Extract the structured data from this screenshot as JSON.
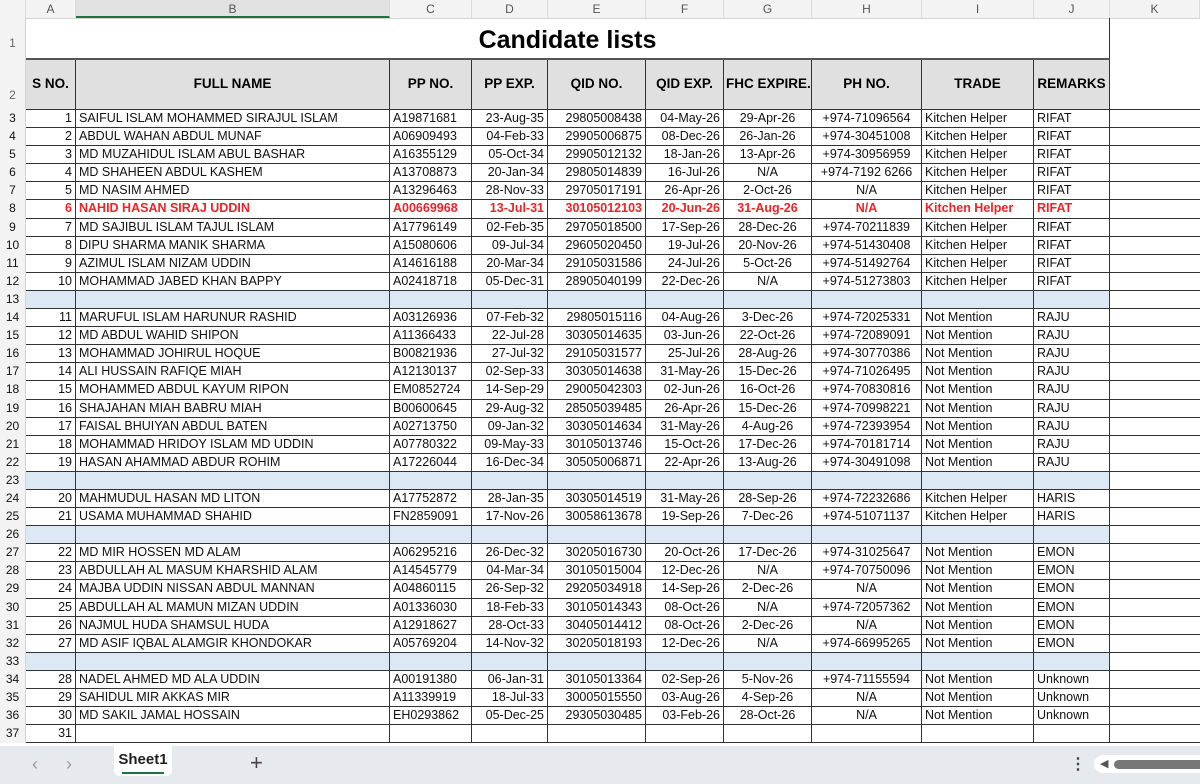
{
  "columns": [
    "A",
    "B",
    "C",
    "D",
    "E",
    "F",
    "G",
    "H",
    "I",
    "J",
    "K"
  ],
  "title": "Candidate lists",
  "headers": [
    "S NO.",
    "FULL NAME",
    "PP NO.",
    "PP EXP.",
    "QID NO.",
    "QID EXP.",
    "FHC EXPIRE.",
    "PH NO.",
    "TRADE",
    "REMARKS"
  ],
  "highlight_color": "#e8262a",
  "separator_color": "#dde8f5",
  "rows": [
    {
      "n": 3,
      "cells": [
        "1",
        "SAIFUL ISLAM MOHAMMED SIRAJUL ISLAM",
        "A19871681",
        "23-Aug-35",
        "29805008438",
        "04-May-26",
        "29-Apr-26",
        "+974-71096564",
        "Kitchen Helper",
        "RIFAT"
      ]
    },
    {
      "n": 4,
      "cells": [
        "2",
        "ABDUL WAHAN ABDUL MUNAF",
        "A06909493",
        "04-Feb-33",
        "29905006875",
        "08-Dec-26",
        "26-Jan-26",
        "+974-30451008",
        "Kitchen Helper",
        "RIFAT"
      ]
    },
    {
      "n": 5,
      "cells": [
        "3",
        "MD MUZAHIDUL ISLAM ABUL BASHAR",
        "A16355129",
        "05-Oct-34",
        "29905012132",
        "18-Jan-26",
        "13-Apr-26",
        "+974-30956959",
        "Kitchen Helper",
        "RIFAT"
      ]
    },
    {
      "n": 6,
      "cells": [
        "4",
        "MD SHAHEEN ABDUL KASHEM",
        "A13708873",
        "20-Jan-34",
        "29805014839",
        "16-Jul-26",
        "N/A",
        "+974-7192 6266",
        "Kitchen Helper",
        "RIFAT"
      ]
    },
    {
      "n": 7,
      "cells": [
        "5",
        "MD NASIM AHMED",
        "A13296463",
        "28-Nov-33",
        "29705017191",
        "26-Apr-26",
        "2-Oct-26",
        "N/A",
        "Kitchen Helper",
        "RIFAT"
      ]
    },
    {
      "n": 8,
      "highlight": true,
      "cells": [
        "6",
        "NAHID HASAN SIRAJ UDDIN",
        "A00669968",
        "13-Jul-31",
        "30105012103",
        "20-Jun-26",
        "31-Aug-26",
        "N/A",
        "Kitchen Helper",
        "RIFAT"
      ]
    },
    {
      "n": 9,
      "cells": [
        "7",
        "MD SAJIBUL ISLAM TAJUL ISLAM",
        "A17796149",
        "02-Feb-35",
        "29705018500",
        "17-Sep-26",
        "28-Dec-26",
        "+974-70211839",
        "Kitchen Helper",
        "RIFAT"
      ]
    },
    {
      "n": 10,
      "cells": [
        "8",
        "DIPU SHARMA MANIK SHARMA",
        "A15080606",
        "09-Jul-34",
        "29605020450",
        "19-Jul-26",
        "20-Nov-26",
        "+974-51430408",
        "Kitchen Helper",
        "RIFAT"
      ]
    },
    {
      "n": 11,
      "cells": [
        "9",
        "AZIMUL ISLAM NIZAM UDDIN",
        "A14616188",
        "20-Mar-34",
        "29105031586",
        "24-Jul-26",
        "5-Oct-26",
        "+974-51492764",
        "Kitchen Helper",
        "RIFAT"
      ]
    },
    {
      "n": 12,
      "cells": [
        "10",
        "MOHAMMAD JABED KHAN BAPPY",
        "A02418718",
        "05-Dec-31",
        "28905040199",
        "22-Dec-26",
        "N/A",
        "+974-51273803",
        "Kitchen Helper",
        "RIFAT"
      ]
    },
    {
      "n": 13,
      "blank": true
    },
    {
      "n": 14,
      "cells": [
        "11",
        "MARUFUL ISLAM HARUNUR RASHID",
        "A03126936",
        "07-Feb-32",
        "29805015116",
        "04-Aug-26",
        "3-Dec-26",
        "+974-72025331",
        "Not Mention",
        "RAJU"
      ]
    },
    {
      "n": 15,
      "cells": [
        "12",
        "MD ABDUL WAHID SHIPON",
        "A11366433",
        "22-Jul-28",
        "30305014635",
        "03-Jun-26",
        "22-Oct-26",
        "+974-72089091",
        "Not Mention",
        "RAJU"
      ]
    },
    {
      "n": 16,
      "cells": [
        "13",
        "MOHAMMAD JOHIRUL HOQUE",
        "B00821936",
        "27-Jul-32",
        "29105031577",
        "25-Jul-26",
        "28-Aug-26",
        "+974-30770386",
        "Not Mention",
        "RAJU"
      ]
    },
    {
      "n": 17,
      "cells": [
        "14",
        "ALI HUSSAIN RAFIQE MIAH",
        "A12130137",
        "02-Sep-33",
        "30305014638",
        "31-May-26",
        "15-Dec-26",
        "+974-71026495",
        "Not Mention",
        "RAJU"
      ]
    },
    {
      "n": 18,
      "cells": [
        "15",
        "MOHAMMED ABDUL KAYUM RIPON",
        "EM0852724",
        "14-Sep-29",
        "29005042303",
        "02-Jun-26",
        "16-Oct-26",
        "+974-70830816",
        "Not Mention",
        "RAJU"
      ]
    },
    {
      "n": 19,
      "cells": [
        "16",
        "SHAJAHAN MIAH BABRU MIAH",
        "B00600645",
        "29-Aug-32",
        "28505039485",
        "26-Apr-26",
        "15-Dec-26",
        "+974-70998221",
        "Not Mention",
        "RAJU"
      ]
    },
    {
      "n": 20,
      "cells": [
        "17",
        "FAISAL BHUIYAN ABDUL BATEN",
        "A02713750",
        "09-Jan-32",
        "30305014634",
        "31-May-26",
        "4-Aug-26",
        "+974-72393954",
        "Not Mention",
        "RAJU"
      ]
    },
    {
      "n": 21,
      "cells": [
        "18",
        "MOHAMMAD HRIDOY ISLAM MD UDDIN",
        "A07780322",
        "09-May-33",
        "30105013746",
        "15-Oct-26",
        "17-Dec-26",
        "+974-70181714",
        "Not Mention",
        "RAJU"
      ]
    },
    {
      "n": 22,
      "cells": [
        "19",
        "HASAN AHAMMAD ABDUR ROHIM",
        "A17226044",
        "16-Dec-34",
        "30505006871",
        "22-Apr-26",
        "13-Aug-26",
        "+974-30491098",
        "Not Mention",
        "RAJU"
      ]
    },
    {
      "n": 23,
      "blank": true
    },
    {
      "n": 24,
      "cells": [
        "20",
        "MAHMUDUL HASAN MD LITON",
        "A17752872",
        "28-Jan-35",
        "30305014519",
        "31-May-26",
        "28-Sep-26",
        "+974-72232686",
        "Kitchen Helper",
        "HARIS"
      ]
    },
    {
      "n": 25,
      "cells": [
        "21",
        "USAMA MUHAMMAD SHAHID",
        "FN2859091",
        "17-Nov-26",
        "30058613678",
        "19-Sep-26",
        "7-Dec-26",
        "+974-51071137",
        "Kitchen Helper",
        "HARIS"
      ]
    },
    {
      "n": 26,
      "blank": true
    },
    {
      "n": 27,
      "cells": [
        "22",
        "MD MIR HOSSEN MD ALAM",
        "A06295216",
        "26-Dec-32",
        "30205016730",
        "20-Oct-26",
        "17-Dec-26",
        "+974-31025647",
        "Not Mention",
        "EMON"
      ]
    },
    {
      "n": 28,
      "cells": [
        "23",
        "ABDULLAH AL MASUM KHARSHID ALAM",
        "A14545779",
        "04-Mar-34",
        "30105015004",
        "12-Dec-26",
        "N/A",
        "+974-70750096",
        "Not Mention",
        "EMON"
      ]
    },
    {
      "n": 29,
      "cells": [
        "24",
        "MAJBA UDDIN NISSAN ABDUL MANNAN",
        "A04860115",
        "26-Sep-32",
        "29205034918",
        "14-Sep-26",
        "2-Dec-26",
        "N/A",
        "Not Mention",
        "EMON"
      ]
    },
    {
      "n": 30,
      "cells": [
        "25",
        "ABDULLAH AL MAMUN MIZAN UDDIN",
        "A01336030",
        "18-Feb-33",
        "30105014343",
        "08-Oct-26",
        "N/A",
        "+974-72057362",
        "Not Mention",
        "EMON"
      ]
    },
    {
      "n": 31,
      "cells": [
        "26",
        "NAJMUL HUDA SHAMSUL HUDA",
        "A12918627",
        "28-Oct-33",
        "30405014412",
        "08-Oct-26",
        "2-Dec-26",
        "N/A",
        "Not Mention",
        "EMON"
      ]
    },
    {
      "n": 32,
      "cells": [
        "27",
        "MD ASIF IQBAL ALAMGIR KHONDOKAR",
        "A05769204",
        "14-Nov-32",
        "30205018193",
        "12-Dec-26",
        "N/A",
        "+974-66995265",
        "Not Mention",
        "EMON"
      ]
    },
    {
      "n": 33,
      "blank": true
    },
    {
      "n": 34,
      "cells": [
        "28",
        "NADEL AHMED MD ALA UDDIN",
        "A00191380",
        "06-Jan-31",
        "30105013364",
        "02-Sep-26",
        "5-Nov-26",
        "+974-71155594",
        "Not Mention",
        "Unknown"
      ]
    },
    {
      "n": 35,
      "cells": [
        "29",
        "SAHIDUL MIR AKKAS MIR",
        "A11339919",
        "18-Jul-33",
        "30005015550",
        "03-Aug-26",
        "4-Sep-26",
        "N/A",
        "Not Mention",
        "Unknown"
      ]
    },
    {
      "n": 36,
      "cells": [
        "30",
        "MD SAKIL JAMAL HOSSAIN",
        "EH0293862",
        "05-Dec-25",
        "29305030485",
        "03-Feb-26",
        "28-Oct-26",
        "N/A",
        "Not Mention",
        "Unknown"
      ]
    },
    {
      "n": 37,
      "cells": [
        "31",
        "",
        "",
        "",
        "",
        "",
        "",
        "",
        "",
        ""
      ]
    }
  ],
  "sheet_tab": "Sheet1",
  "add_sheet": "+",
  "nav_prev": "‹",
  "nav_next": "›",
  "more_icon": "⋮"
}
